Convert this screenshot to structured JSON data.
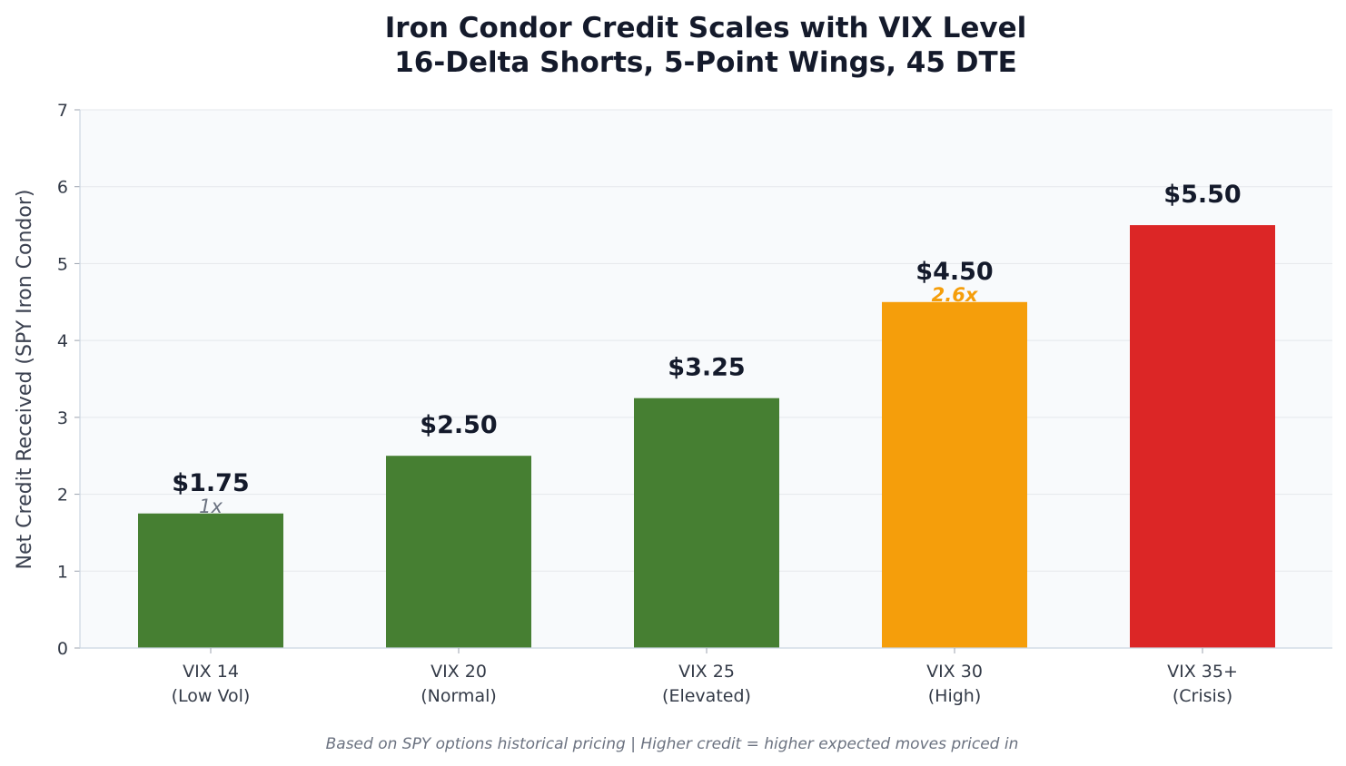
{
  "chart_data": {
    "type": "bar",
    "title_lines": [
      "Iron Condor Credit Scales with VIX Level",
      "16-Delta Shorts, 5-Point Wings, 45 DTE"
    ],
    "ylabel": "Net Credit Received (SPY Iron Condor)",
    "ylim": [
      0,
      7
    ],
    "yticks": [
      0,
      1,
      2,
      3,
      4,
      5,
      6,
      7
    ],
    "grid": true,
    "categories": [
      {
        "line1": "VIX 14",
        "line2": "(Low Vol)"
      },
      {
        "line1": "VIX 20",
        "line2": "(Normal)"
      },
      {
        "line1": "VIX 25",
        "line2": "(Elevated)"
      },
      {
        "line1": "VIX 30",
        "line2": "(High)"
      },
      {
        "line1": "VIX 35+",
        "line2": "(Crisis)"
      }
    ],
    "values": [
      1.75,
      2.5,
      3.25,
      4.5,
      5.5
    ],
    "value_labels": [
      "$1.75",
      "$2.50",
      "$3.25",
      "$4.50",
      "$5.50"
    ],
    "bar_colors": [
      "#467f32",
      "#467f32",
      "#467f32",
      "#f59e0b",
      "#dc2626"
    ],
    "annotations": [
      {
        "index": 0,
        "text": "1x",
        "color": "#6b7280"
      },
      {
        "index": 3,
        "text": "2.6x",
        "color": "#f59e0b"
      }
    ],
    "footnote": "Based on SPY options historical pricing | Higher credit = higher expected moves priced in"
  },
  "colors": {
    "plot_background": "#f8fafc",
    "grid": "#e5e7eb",
    "axis": "#cbd5e1"
  }
}
